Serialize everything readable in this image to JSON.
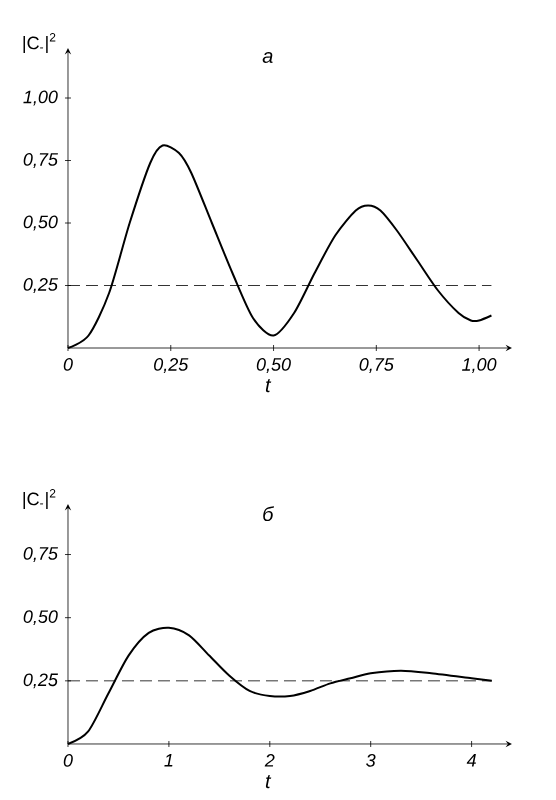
{
  "chart_data": [
    {
      "type": "line",
      "title": "а",
      "xlabel": "t",
      "ylabel": "|C$_{-}$|$^{2}$",
      "x": [
        0,
        0.05,
        0.1,
        0.15,
        0.2,
        0.23,
        0.27,
        0.3,
        0.35,
        0.4,
        0.45,
        0.5,
        0.55,
        0.6,
        0.65,
        0.7,
        0.73,
        0.76,
        0.8,
        0.85,
        0.9,
        0.95,
        0.98,
        1.0,
        1.03
      ],
      "series": [
        {
          "color": "#000000",
          "line_style": "solid",
          "values": [
            0,
            0.05,
            0.22,
            0.5,
            0.74,
            0.81,
            0.78,
            0.7,
            0.5,
            0.3,
            0.12,
            0.05,
            0.14,
            0.3,
            0.45,
            0.55,
            0.57,
            0.55,
            0.47,
            0.35,
            0.23,
            0.14,
            0.11,
            0.11,
            0.13
          ]
        }
      ],
      "xlim": [
        0,
        1.08
      ],
      "ylim": [
        0,
        1.2
      ],
      "xticks": [
        {
          "value": 0,
          "label": "0"
        },
        {
          "value": 0.25,
          "label": "0,25"
        },
        {
          "value": 0.5,
          "label": "0,50"
        },
        {
          "value": 0.75,
          "label": "0,75"
        },
        {
          "value": 1,
          "label": "1,00"
        }
      ],
      "yticks": [
        {
          "value": 0.25,
          "label": "0,25"
        },
        {
          "value": 0.5,
          "label": "0,50"
        },
        {
          "value": 0.75,
          "label": "0,75"
        },
        {
          "value": 1,
          "label": "1,00"
        }
      ],
      "ref_lines": [
        {
          "axis": "y",
          "value": 0.25,
          "color": "#000000",
          "line_style": "dashed"
        }
      ]
    },
    {
      "type": "line",
      "title": "б",
      "xlabel": "t",
      "ylabel": "|C$_{-}$|$^{2}$",
      "x": [
        0,
        0.2,
        0.4,
        0.6,
        0.8,
        1.0,
        1.2,
        1.4,
        1.6,
        1.8,
        2.0,
        2.2,
        2.4,
        2.6,
        2.8,
        3.0,
        3.3,
        3.6,
        4.0,
        4.2
      ],
      "series": [
        {
          "color": "#000000",
          "line_style": "solid",
          "values": [
            0,
            0.05,
            0.2,
            0.35,
            0.44,
            0.46,
            0.43,
            0.35,
            0.27,
            0.21,
            0.19,
            0.19,
            0.21,
            0.24,
            0.26,
            0.28,
            0.29,
            0.28,
            0.26,
            0.25
          ]
        }
      ],
      "xlim": [
        0,
        4.4
      ],
      "ylim": [
        0,
        0.95
      ],
      "xticks": [
        {
          "value": 0,
          "label": "0"
        },
        1,
        2,
        3,
        4
      ],
      "yticks": [
        {
          "value": 0.25,
          "label": "0,25"
        },
        {
          "value": 0.5,
          "label": "0,50"
        },
        {
          "value": 0.75,
          "label": "0,75"
        }
      ],
      "ref_lines": [
        {
          "axis": "y",
          "value": 0.25,
          "color": "#000000",
          "line_style": "dashed"
        }
      ]
    }
  ]
}
